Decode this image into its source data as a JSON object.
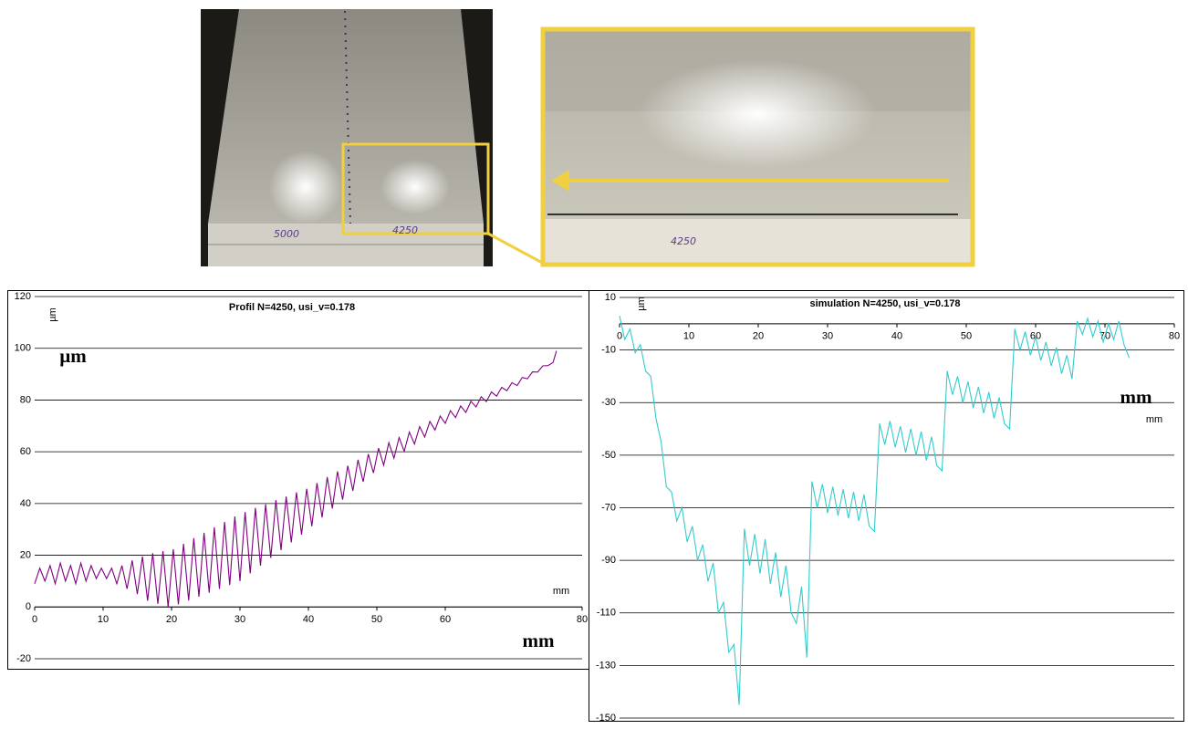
{
  "photo_labels": [
    "5000",
    "4250",
    "4250"
  ],
  "chart_data": [
    {
      "type": "line",
      "title": "Profil N=4250, usi_v=0.178",
      "y_label": "µm",
      "x_label": "mm",
      "annotations": [
        "µm",
        "mm"
      ],
      "color": "#800080",
      "grid": true,
      "xlim": [
        0,
        80
      ],
      "ylim": [
        -20,
        120
      ],
      "xticks": [
        0,
        10,
        20,
        30,
        40,
        50,
        60,
        80
      ],
      "yticks": [
        -20,
        0,
        20,
        40,
        60,
        80,
        100,
        120
      ],
      "x": [
        0,
        0.75,
        1.5,
        2.25,
        3,
        3.75,
        4.5,
        5.25,
        6,
        6.75,
        7.5,
        8.25,
        9,
        9.75,
        10.5,
        11.25,
        12,
        12.75,
        13.5,
        14.25,
        15,
        15.75,
        16.5,
        17.25,
        18,
        18.75,
        19.5,
        20.25,
        21,
        21.75,
        22.5,
        23.25,
        24,
        24.75,
        25.5,
        26.25,
        27,
        27.75,
        28.5,
        29.25,
        30,
        30.75,
        31.5,
        32.25,
        33,
        33.75,
        34.5,
        35.25,
        36,
        36.75,
        37.5,
        38.25,
        39,
        39.75,
        40.5,
        41.25,
        42,
        42.75,
        43.5,
        44.25,
        45,
        45.75,
        46.5,
        47.25,
        48,
        48.75,
        49.5,
        50.25,
        51,
        51.75,
        52.5,
        53.25,
        54,
        54.75,
        55.5,
        56.25,
        57,
        57.75,
        58.5,
        59.25,
        60,
        60.75,
        61.5,
        62.25,
        63,
        63.75,
        64.5,
        65.25,
        66,
        66.75,
        67.5,
        68.25,
        69,
        69.75,
        70.5,
        71.25,
        72,
        72.75,
        73.5,
        74.25,
        75,
        75.75,
        76.25
      ],
      "values": [
        9,
        15,
        10,
        16,
        9,
        17,
        10,
        16,
        9,
        17,
        10,
        16,
        11,
        15,
        11,
        15,
        9,
        16,
        7,
        18,
        5,
        19.5,
        2.4,
        20.8,
        1.2,
        21.6,
        0,
        22.3,
        1,
        24.4,
        2.5,
        26.6,
        4,
        28.7,
        5.5,
        30.8,
        7,
        32.9,
        8.5,
        35,
        10,
        36.7,
        13,
        38.3,
        16,
        39.7,
        19,
        41.3,
        22,
        42.7,
        25,
        44.3,
        28,
        45.7,
        31.2,
        47.9,
        34.6,
        50.2,
        38.1,
        52.4,
        41.5,
        54.6,
        44.9,
        56.9,
        48.4,
        59.1,
        51.8,
        61.4,
        54.8,
        63.5,
        57.5,
        65.5,
        60.2,
        67.6,
        63,
        69.7,
        65.7,
        71.7,
        68.4,
        73.8,
        71,
        75.9,
        73.2,
        77.7,
        75.2,
        79.5,
        77.3,
        81.3,
        79.4,
        83.1,
        81.5,
        84.9,
        83.6,
        86.7,
        85.6,
        88.7,
        88.2,
        90.9,
        90.8,
        93.2,
        93.3,
        94.5,
        99
      ]
    },
    {
      "type": "line",
      "title": "simulation N=4250, usi_v=0.178",
      "y_label": "µm",
      "x_label": "mm",
      "annotations": [
        "mm"
      ],
      "color": "#33cccc",
      "grid": true,
      "xlim": [
        0,
        80
      ],
      "ylim": [
        -150,
        10
      ],
      "xticks": [
        0,
        10,
        20,
        30,
        40,
        50,
        60,
        70,
        80
      ],
      "yticks": [
        10,
        -10,
        -30,
        -50,
        -70,
        -90,
        -110,
        -130,
        -150
      ],
      "x": [
        0,
        0.75,
        1.5,
        2.25,
        3,
        3.75,
        4.5,
        5.25,
        6,
        6.75,
        7.5,
        8.25,
        9,
        9.75,
        10.5,
        11.25,
        12,
        12.75,
        13.5,
        14.25,
        15,
        15.75,
        16.5,
        17.25,
        18,
        18.75,
        19.5,
        20.25,
        21,
        21.75,
        22.5,
        23.25,
        24,
        24.75,
        25.5,
        26.25,
        27,
        27.75,
        28.5,
        29.25,
        30,
        30.75,
        31.5,
        32.25,
        33,
        33.75,
        34.5,
        35.25,
        36,
        36.75,
        37.5,
        38.25,
        39,
        39.75,
        40.5,
        41.25,
        42,
        42.75,
        43.5,
        44.25,
        45,
        45.75,
        46.5,
        47.25,
        48,
        48.75,
        49.5,
        50.25,
        51,
        51.75,
        52.5,
        53.25,
        54,
        54.75,
        55.5,
        56.25,
        57,
        57.75,
        58.5,
        59.25,
        60,
        60.75,
        61.5,
        62.25,
        63,
        63.75,
        64.5,
        65.25,
        66,
        66.75,
        67.5,
        68.25,
        69,
        69.75,
        70.5,
        71.25,
        72,
        72.75,
        73.5
      ],
      "values": [
        3,
        -6,
        -2,
        -11,
        -8,
        -18,
        -20,
        -36,
        -45,
        -62,
        -64,
        -75,
        -70,
        -83,
        -77,
        -90,
        -84,
        -98,
        -91,
        -110,
        -106,
        -125,
        -122,
        -145,
        -78,
        -92,
        -80,
        -95,
        -82,
        -99,
        -87,
        -104,
        -92,
        -110,
        -114,
        -100,
        -127,
        -60,
        -70,
        -61,
        -72,
        -62,
        -73,
        -63,
        -74,
        -64,
        -75,
        -65,
        -77,
        -79,
        -38,
        -46,
        -37,
        -47,
        -39,
        -49,
        -40,
        -50,
        -41,
        -52,
        -43,
        -54,
        -56,
        -18,
        -27,
        -20,
        -30,
        -22,
        -32,
        -24,
        -34,
        -26,
        -36,
        -28,
        -38,
        -40,
        -2,
        -10,
        -3,
        -12,
        -5,
        -14,
        -7,
        -16,
        -9,
        -19,
        -12,
        -21,
        1,
        -4,
        2,
        -5,
        1,
        -7,
        0,
        -6,
        1,
        -8,
        -13
      ]
    }
  ]
}
